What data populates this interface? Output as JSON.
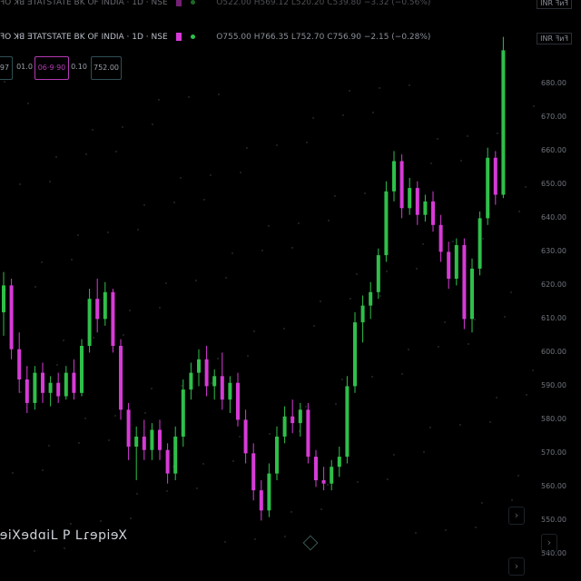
{
  "header_top": {
    "symbol": "ꟻO ꓘꓭ ƎTATSTATE BK OF INDIA · 1D · NSE",
    "ohlc": "O522.00 H569.12 L520.20 C539.80 −3.32 (−0.56%)",
    "currency": "INR ꟻᴎꟻ"
  },
  "header_main": {
    "symbol": "ꟻO ꓘꓭ ƎTATSTATE BK OF INDIA · 1D · NSE",
    "ohlc": "O755.00 H766.35 L752.70 C756.90 −2.15 (−0.28%)",
    "currency": "INR ꟻᴎꟻ"
  },
  "toolbar": {
    "b1": "97",
    "b2": "01.0",
    "b3": "06·9·90",
    "b4": "0.10",
    "b5": "752.00"
  },
  "logo_text": "Xeiqeɿ⅃ ꟼ ⅃iɒbeXiew",
  "colors": {
    "up": "#2fbf4a",
    "down": "#d63bd6",
    "bg": "#000000"
  },
  "chart_data": {
    "type": "candlestick",
    "title": "STATE BK OF INDIA · 1D · NSE",
    "ylabel": "",
    "xlabel": "",
    "ylim": [
      532,
      692
    ],
    "y_ticks": [
      "680.00",
      "670.00",
      "660.00",
      "650.00",
      "640.00",
      "630.00",
      "620.00",
      "610.00",
      "600.00",
      "590.00",
      "580.00",
      "570.00",
      "560.00",
      "550.00",
      "540.00"
    ],
    "grid": false,
    "series": [
      {
        "values": [
          {
            "o": 612,
            "h": 624,
            "l": 605,
            "c": 620
          },
          {
            "o": 620,
            "h": 622,
            "l": 598,
            "c": 601
          },
          {
            "o": 601,
            "h": 606,
            "l": 588,
            "c": 592
          },
          {
            "o": 592,
            "h": 596,
            "l": 582,
            "c": 585
          },
          {
            "o": 585,
            "h": 596,
            "l": 583,
            "c": 594
          },
          {
            "o": 594,
            "h": 597,
            "l": 585,
            "c": 588
          },
          {
            "o": 588,
            "h": 593,
            "l": 584,
            "c": 591
          },
          {
            "o": 591,
            "h": 594,
            "l": 585,
            "c": 587
          },
          {
            "o": 587,
            "h": 596,
            "l": 586,
            "c": 594
          },
          {
            "o": 594,
            "h": 598,
            "l": 586,
            "c": 588
          },
          {
            "o": 588,
            "h": 604,
            "l": 587,
            "c": 602
          },
          {
            "o": 602,
            "h": 619,
            "l": 600,
            "c": 616
          },
          {
            "o": 616,
            "h": 622,
            "l": 606,
            "c": 610
          },
          {
            "o": 610,
            "h": 621,
            "l": 608,
            "c": 618
          },
          {
            "o": 618,
            "h": 619,
            "l": 600,
            "c": 602
          },
          {
            "o": 602,
            "h": 604,
            "l": 580,
            "c": 583
          },
          {
            "o": 583,
            "h": 585,
            "l": 568,
            "c": 572
          },
          {
            "o": 572,
            "h": 578,
            "l": 562,
            "c": 575
          },
          {
            "o": 575,
            "h": 580,
            "l": 568,
            "c": 571
          },
          {
            "o": 571,
            "h": 579,
            "l": 568,
            "c": 577
          },
          {
            "o": 577,
            "h": 580,
            "l": 568,
            "c": 571
          },
          {
            "o": 571,
            "h": 573,
            "l": 561,
            "c": 564
          },
          {
            "o": 564,
            "h": 578,
            "l": 562,
            "c": 575
          },
          {
            "o": 575,
            "h": 592,
            "l": 572,
            "c": 589
          },
          {
            "o": 589,
            "h": 597,
            "l": 586,
            "c": 594
          },
          {
            "o": 594,
            "h": 601,
            "l": 590,
            "c": 598
          },
          {
            "o": 598,
            "h": 602,
            "l": 587,
            "c": 590
          },
          {
            "o": 590,
            "h": 595,
            "l": 586,
            "c": 593
          },
          {
            "o": 593,
            "h": 600,
            "l": 583,
            "c": 586
          },
          {
            "o": 586,
            "h": 593,
            "l": 582,
            "c": 591
          },
          {
            "o": 591,
            "h": 594,
            "l": 578,
            "c": 580
          },
          {
            "o": 580,
            "h": 583,
            "l": 567,
            "c": 570
          },
          {
            "o": 570,
            "h": 573,
            "l": 556,
            "c": 559
          },
          {
            "o": 559,
            "h": 562,
            "l": 550,
            "c": 553
          },
          {
            "o": 553,
            "h": 567,
            "l": 551,
            "c": 564
          },
          {
            "o": 564,
            "h": 578,
            "l": 562,
            "c": 575
          },
          {
            "o": 575,
            "h": 584,
            "l": 573,
            "c": 581
          },
          {
            "o": 581,
            "h": 586,
            "l": 576,
            "c": 579
          },
          {
            "o": 579,
            "h": 585,
            "l": 575,
            "c": 583
          },
          {
            "o": 583,
            "h": 585,
            "l": 567,
            "c": 569
          },
          {
            "o": 569,
            "h": 571,
            "l": 560,
            "c": 562
          },
          {
            "o": 562,
            "h": 566,
            "l": 559,
            "c": 561
          },
          {
            "o": 561,
            "h": 568,
            "l": 559,
            "c": 566
          },
          {
            "o": 566,
            "h": 572,
            "l": 563,
            "c": 569
          },
          {
            "o": 569,
            "h": 593,
            "l": 567,
            "c": 590
          },
          {
            "o": 590,
            "h": 612,
            "l": 588,
            "c": 609
          },
          {
            "o": 609,
            "h": 617,
            "l": 603,
            "c": 614
          },
          {
            "o": 614,
            "h": 621,
            "l": 610,
            "c": 618
          },
          {
            "o": 618,
            "h": 631,
            "l": 616,
            "c": 629
          },
          {
            "o": 629,
            "h": 651,
            "l": 627,
            "c": 648
          },
          {
            "o": 648,
            "h": 660,
            "l": 645,
            "c": 657
          },
          {
            "o": 657,
            "h": 659,
            "l": 640,
            "c": 643
          },
          {
            "o": 643,
            "h": 652,
            "l": 641,
            "c": 649
          },
          {
            "o": 649,
            "h": 651,
            "l": 638,
            "c": 641
          },
          {
            "o": 641,
            "h": 647,
            "l": 639,
            "c": 645
          },
          {
            "o": 645,
            "h": 648,
            "l": 636,
            "c": 638
          },
          {
            "o": 638,
            "h": 641,
            "l": 627,
            "c": 630
          },
          {
            "o": 630,
            "h": 633,
            "l": 619,
            "c": 622
          },
          {
            "o": 622,
            "h": 634,
            "l": 620,
            "c": 632
          },
          {
            "o": 632,
            "h": 634,
            "l": 607,
            "c": 610
          },
          {
            "o": 610,
            "h": 628,
            "l": 606,
            "c": 625
          },
          {
            "o": 625,
            "h": 642,
            "l": 623,
            "c": 640
          },
          {
            "o": 640,
            "h": 661,
            "l": 638,
            "c": 658
          },
          {
            "o": 658,
            "h": 660,
            "l": 644,
            "c": 647
          },
          {
            "o": 647,
            "h": 694,
            "l": 646,
            "c": 690
          }
        ]
      }
    ]
  }
}
